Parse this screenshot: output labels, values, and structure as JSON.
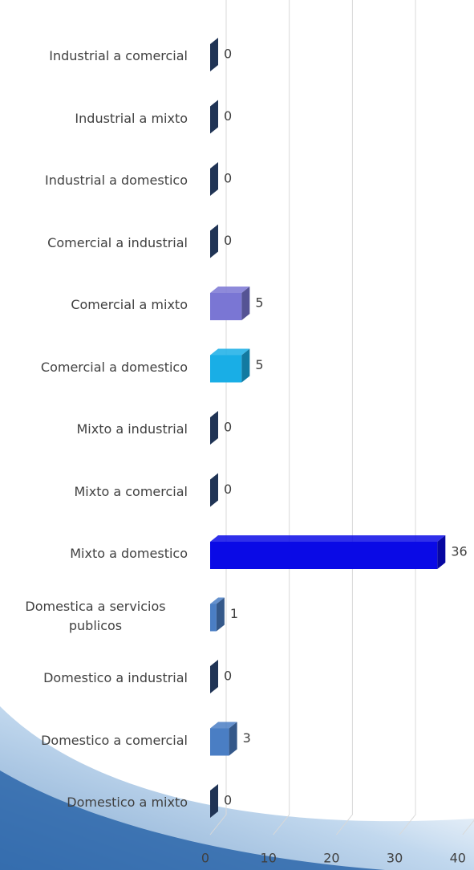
{
  "chart_data": {
    "type": "bar3d_horizontal",
    "categories": [
      "Industrial a comercial",
      "Industrial a mixto",
      "Industrial a domestico",
      "Comercial a industrial",
      "Comercial a mixto",
      "Comercial a domestico",
      "Mixto a industrial",
      "Mixto a comercial",
      "Mixto a domestico",
      "Domestica a servicios publicos",
      "Domestico a industrial",
      "Domestico a comercial",
      "Domestico a mixto"
    ],
    "values": [
      0,
      0,
      0,
      0,
      5,
      5,
      0,
      0,
      36,
      1,
      0,
      3,
      0
    ],
    "colors": [
      "#2e4a7a",
      "#2e4a7a",
      "#2e4a7a",
      "#2e4a7a",
      "#7a76d4",
      "#19aee6",
      "#2e4a7a",
      "#2e4a7a",
      "#0a0ae6",
      "#4a7ec4",
      "#2e4a7a",
      "#4a7ec4",
      "#2e4a7a"
    ],
    "xlim": [
      0,
      40
    ],
    "xticks": [
      0,
      10,
      20,
      30,
      40
    ],
    "grid": true
  }
}
